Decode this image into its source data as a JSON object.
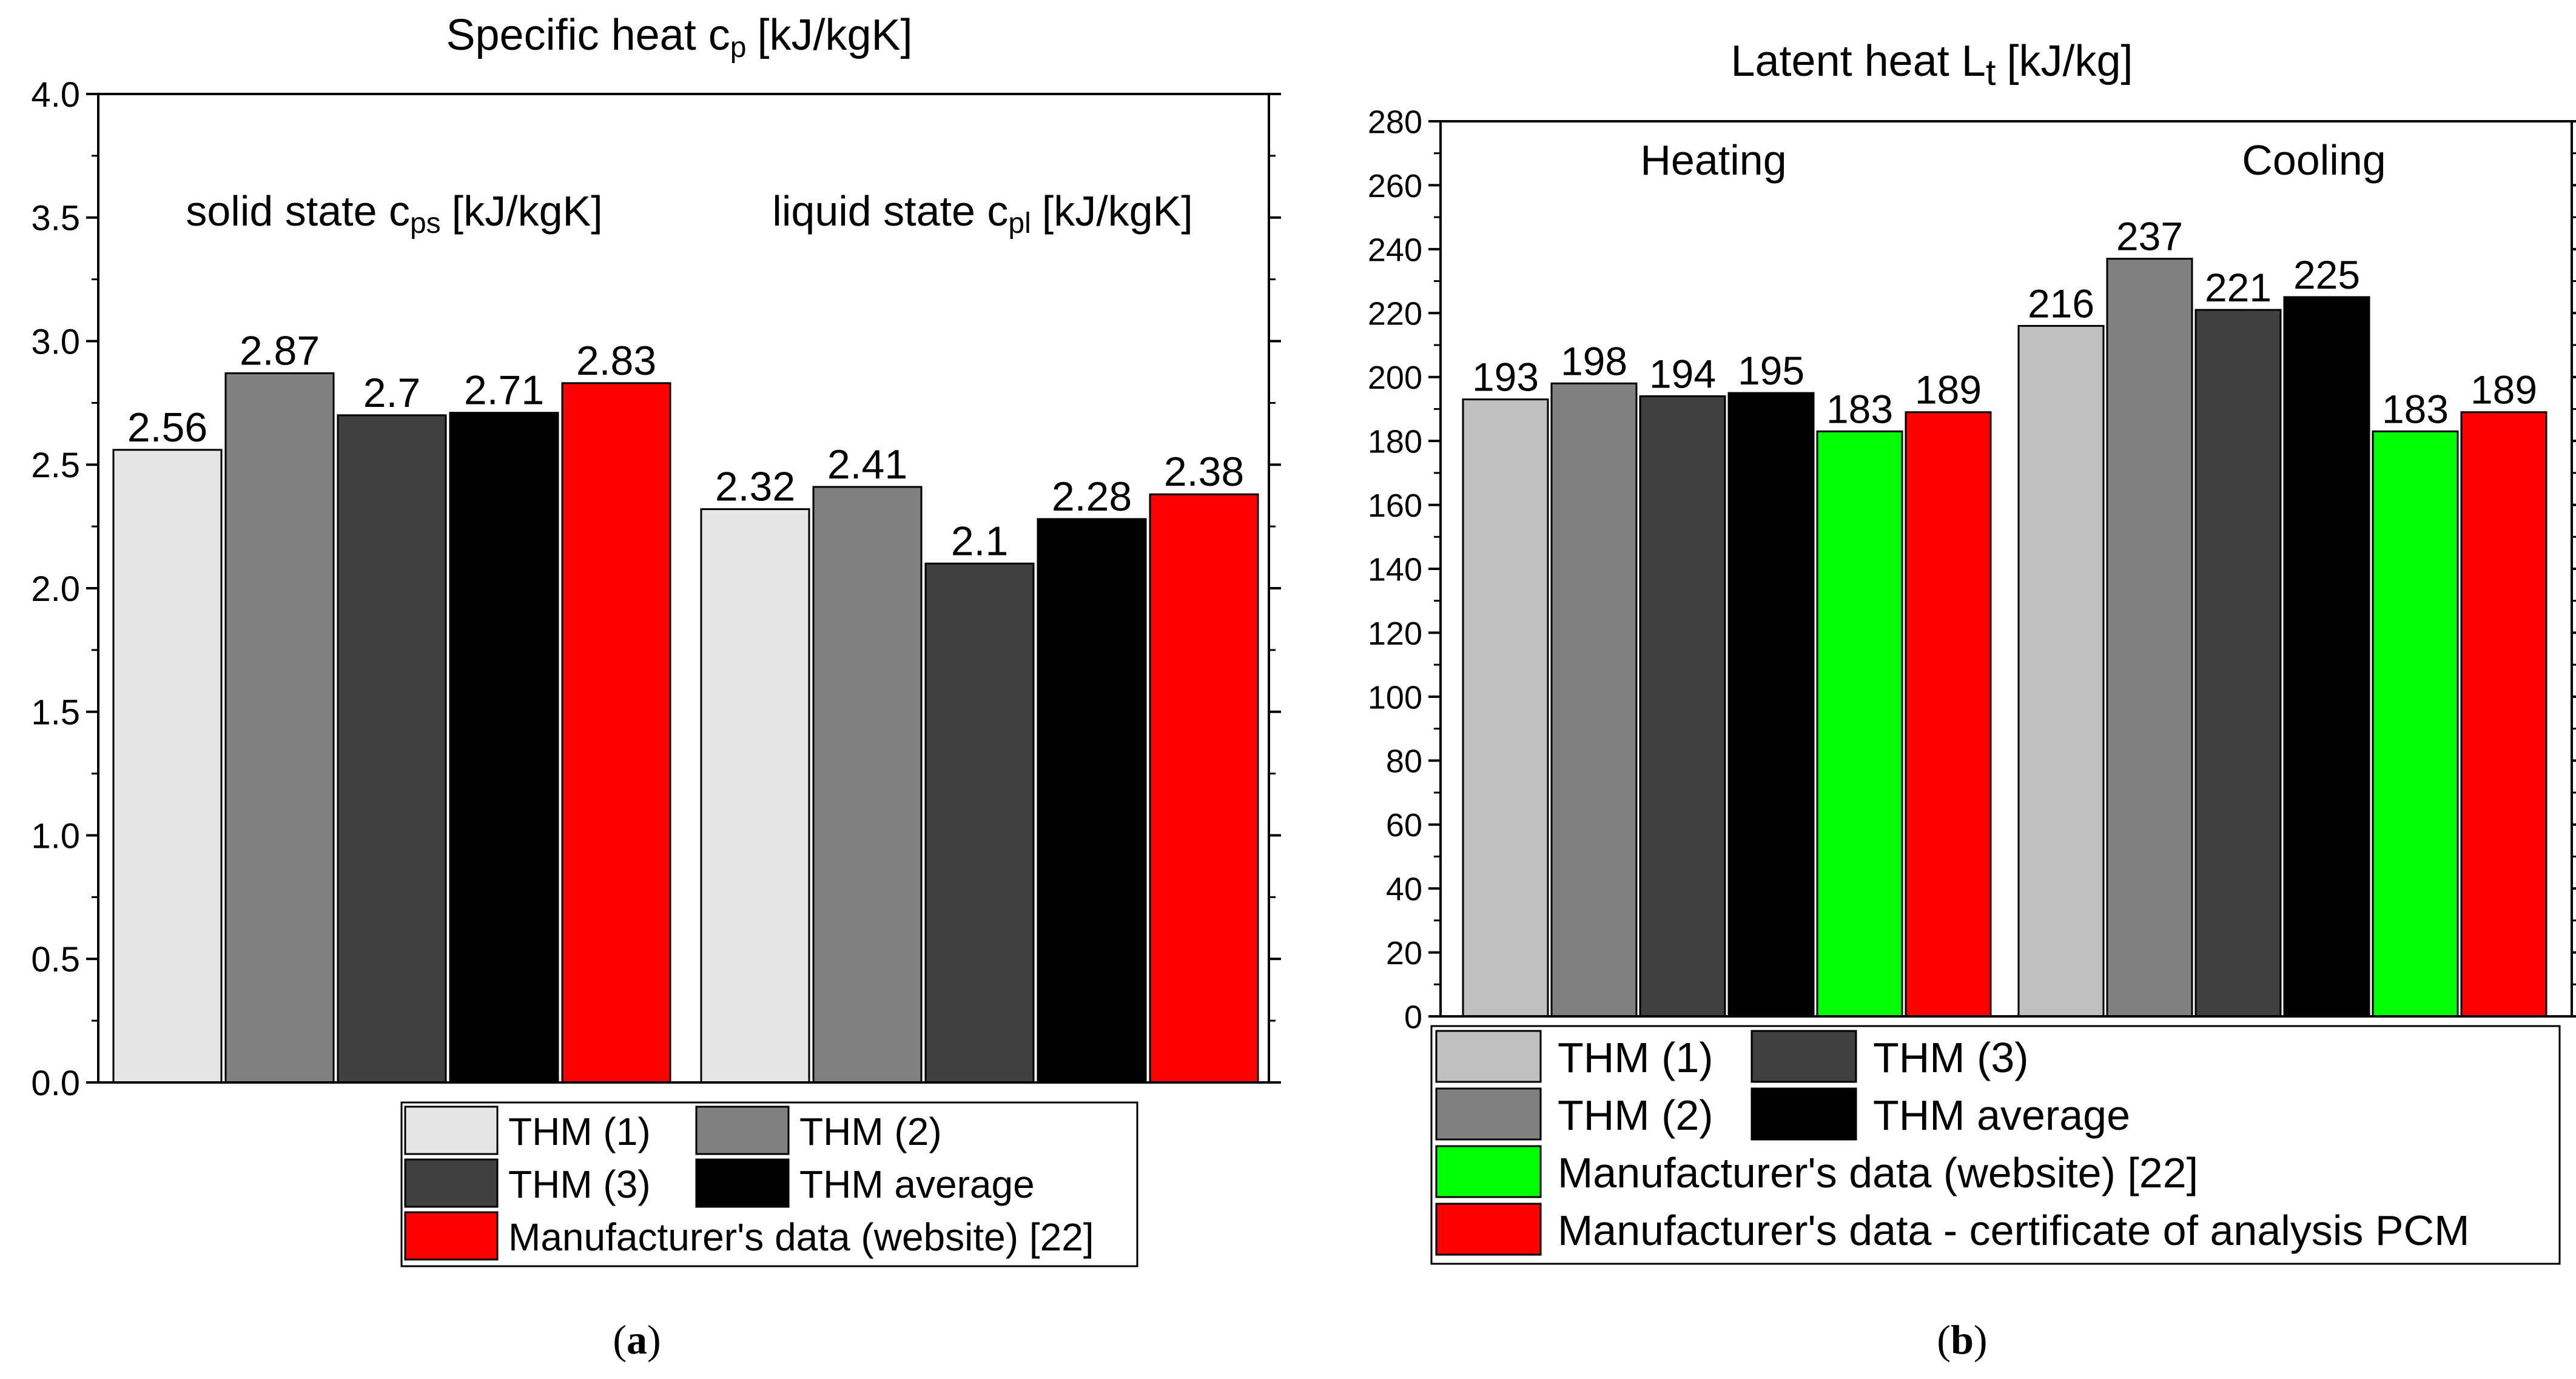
{
  "chart_data": [
    {
      "id": "a",
      "type": "bar",
      "title": "Specific heat c",
      "title_sub": "p",
      "title_unit": "[kJ/kgK]",
      "ylim": [
        0,
        4.0
      ],
      "yticks": [
        "0.0",
        "0.5",
        "1.0",
        "1.5",
        "2.0",
        "2.5",
        "3.0",
        "3.5",
        "4.0"
      ],
      "grid": false,
      "groups": [
        {
          "label_main": "solid state c",
          "label_sub": "ps",
          "label_unit": "[kJ/kgK]"
        },
        {
          "label_main": "liquid state c",
          "label_sub": "pl",
          "label_unit": "[kJ/kgK]"
        }
      ],
      "series": [
        {
          "name": "THM (1)",
          "color": "#e6e6e6",
          "values": [
            2.56,
            2.32
          ],
          "labels": [
            "2.56",
            "2.32"
          ]
        },
        {
          "name": "THM (2)",
          "color": "#808080",
          "values": [
            2.87,
            2.41
          ],
          "labels": [
            "2.87",
            "2.41"
          ]
        },
        {
          "name": "THM (3)",
          "color": "#404040",
          "values": [
            2.7,
            2.1
          ],
          "labels": [
            "2.7",
            "2.1"
          ]
        },
        {
          "name": "THM average",
          "color": "#000000",
          "values": [
            2.71,
            2.28
          ],
          "labels": [
            "2.71",
            "2.28"
          ]
        },
        {
          "name": "Manufacturer's data (website) [22]",
          "color": "#ff0000",
          "values": [
            2.83,
            2.38
          ],
          "labels": [
            "2.83",
            "2.38"
          ]
        }
      ],
      "legend_position": "bottom",
      "caption": "a"
    },
    {
      "id": "b",
      "type": "bar",
      "title": "Latent heat L",
      "title_sub": "t",
      "title_unit": "[kJ/kg]",
      "ylim": [
        0,
        280
      ],
      "yticks": [
        "0",
        "20",
        "40",
        "60",
        "80",
        "100",
        "120",
        "140",
        "160",
        "180",
        "200",
        "220",
        "240",
        "260",
        "280"
      ],
      "grid": false,
      "groups": [
        {
          "label_main": "Heating"
        },
        {
          "label_main": "Cooling"
        }
      ],
      "series": [
        {
          "name": "THM (1)",
          "color": "#c0c0c0",
          "values": [
            193,
            216
          ],
          "labels": [
            "193",
            "216"
          ]
        },
        {
          "name": "THM (2)",
          "color": "#808080",
          "values": [
            198,
            237
          ],
          "labels": [
            "198",
            "237"
          ]
        },
        {
          "name": "THM (3)",
          "color": "#404040",
          "values": [
            194,
            221
          ],
          "labels": [
            "194",
            "221"
          ]
        },
        {
          "name": "THM average",
          "color": "#000000",
          "values": [
            195,
            225
          ],
          "labels": [
            "195",
            "225"
          ]
        },
        {
          "name": "Manufacturer's data (website) [22]",
          "color": "#00ff00",
          "values": [
            183,
            183
          ],
          "labels": [
            "183",
            "183"
          ]
        },
        {
          "name": "Manufacturer's data - certificate of analysis PCM",
          "color": "#ff0000",
          "values": [
            189,
            189
          ],
          "labels": [
            "189",
            "189"
          ]
        }
      ],
      "legend_position": "bottom",
      "caption": "b"
    }
  ]
}
